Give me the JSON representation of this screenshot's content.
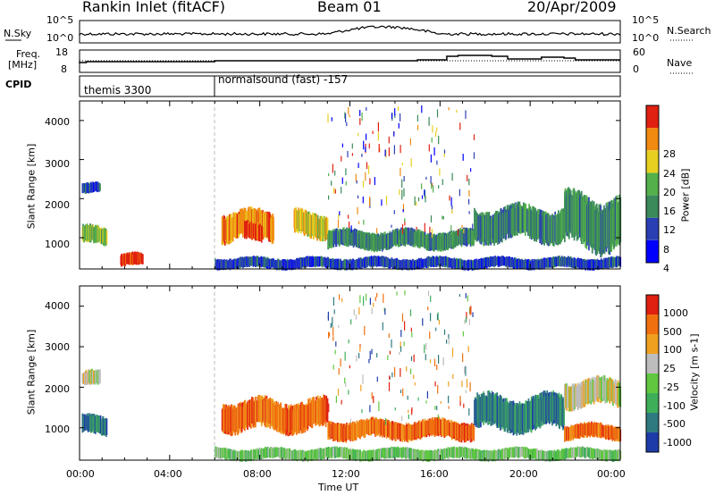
{
  "header": {
    "station": "Rankin Inlet (fitACF)",
    "beam": "Beam 01",
    "date": "20/Apr/2009"
  },
  "noise_panel": {
    "left_label": "N.Sky",
    "right_label": "N.Search",
    "ticks_left": [
      "10^5",
      "10^0"
    ],
    "ticks_right": [
      "10^5",
      "10^0"
    ]
  },
  "freq_panel": {
    "left_label": "Freq.",
    "left_unit": "[MHz]",
    "right_label": "Nave",
    "ticks_left": [
      "18",
      "8"
    ],
    "ticks_right": [
      "60",
      "0"
    ]
  },
  "cpid": {
    "label": "CPID",
    "modes": [
      {
        "name": "themis 3300",
        "start_hour": 0
      },
      {
        "name": "normalsound (fast) -157",
        "start_hour": 6
      }
    ]
  },
  "chart_data": [
    {
      "type": "heatmap",
      "name": "power",
      "ylabel": "Slant Range [km]",
      "yticks": [
        "4000",
        "3000",
        "2000",
        "1000"
      ],
      "ylim": [
        200,
        4500
      ],
      "xlim": [
        0,
        24
      ],
      "colorbar": {
        "label": "Power [dB]",
        "ticks": [
          "28",
          "24",
          "20",
          "16",
          "12",
          "8",
          "4"
        ],
        "colors": [
          "#0000ff",
          "#2b3fb5",
          "#3a8a5a",
          "#54b04a",
          "#e8d020",
          "#f08a10",
          "#e02010"
        ]
      },
      "echo_regions": [
        {
          "t0": 0.1,
          "t1": 0.9,
          "r0": 2100,
          "r1": 2400,
          "level": 1
        },
        {
          "t0": 0.1,
          "t1": 1.2,
          "r0": 800,
          "r1": 1300,
          "level": 3
        },
        {
          "t0": 1.8,
          "t1": 2.8,
          "r0": 250,
          "r1": 600,
          "level": 6
        },
        {
          "t0": 6.3,
          "t1": 8.6,
          "r0": 900,
          "r1": 1700,
          "level": 5
        },
        {
          "t0": 7.3,
          "t1": 8.1,
          "r0": 900,
          "r1": 1400,
          "level": 6
        },
        {
          "t0": 9.5,
          "t1": 11.0,
          "r0": 1000,
          "r1": 1700,
          "level": 4
        },
        {
          "t0": 11.0,
          "t1": 17.5,
          "r0": 700,
          "r1": 1200,
          "level": 2
        },
        {
          "t0": 17.5,
          "t1": 21.5,
          "r0": 900,
          "r1": 1800,
          "level": 2
        },
        {
          "t0": 21.5,
          "t1": 24.0,
          "r0": 700,
          "r1": 2100,
          "level": 2
        },
        {
          "t0": 6.0,
          "t1": 24.0,
          "r0": 200,
          "r1": 500,
          "level": 1
        }
      ]
    },
    {
      "type": "heatmap",
      "name": "velocity",
      "ylabel": "Slant Range [km]",
      "xlabel": "Time UT",
      "yticks": [
        "4000",
        "3000",
        "2000",
        "1000"
      ],
      "xticks": [
        "00:00",
        "04:00",
        "08:00",
        "12:00",
        "16:00",
        "20:00",
        "00:00"
      ],
      "ylim": [
        200,
        4500
      ],
      "xlim": [
        0,
        24
      ],
      "colorbar": {
        "label": "Velocity [m s-1]",
        "ticks": [
          "1000",
          "500",
          "100",
          "25",
          "-25",
          "-100",
          "-500",
          "-1000"
        ],
        "colors": [
          "#1e3ca8",
          "#2f7a80",
          "#3fae5a",
          "#60c840",
          "#bdbdbd",
          "#f0a020",
          "#f07010",
          "#e02010"
        ]
      },
      "echo_regions": [
        {
          "t0": 0.1,
          "t1": 0.9,
          "r0": 2000,
          "r1": 2400,
          "level": 4
        },
        {
          "t0": 0.1,
          "t1": 1.2,
          "r0": 800,
          "r1": 1300,
          "level": 1
        },
        {
          "t0": 6.3,
          "t1": 11.0,
          "r0": 900,
          "r1": 1700,
          "level": 6
        },
        {
          "t0": 11.0,
          "t1": 17.5,
          "r0": 700,
          "r1": 1200,
          "level": 6
        },
        {
          "t0": 17.5,
          "t1": 21.5,
          "r0": 900,
          "r1": 1800,
          "level": 1
        },
        {
          "t0": 21.5,
          "t1": 24.0,
          "r0": 1500,
          "r1": 2200,
          "level": 4
        },
        {
          "t0": 21.5,
          "t1": 24.0,
          "r0": 700,
          "r1": 1100,
          "level": 6
        },
        {
          "t0": 6.0,
          "t1": 24.0,
          "r0": 200,
          "r1": 500,
          "level": 3
        }
      ]
    }
  ]
}
